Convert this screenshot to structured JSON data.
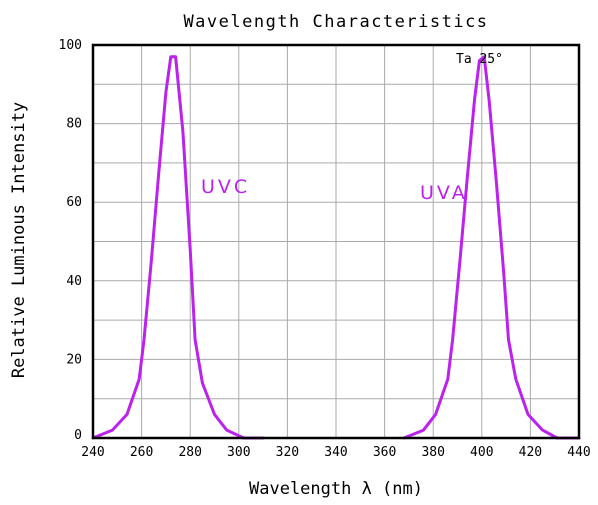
{
  "chart_data": {
    "type": "line",
    "title": "Wavelength Characteristics",
    "xlabel": "Wavelength λ (nm)",
    "ylabel": "Relative Luminous Intensity",
    "xlim": [
      240,
      440
    ],
    "ylim": [
      0,
      100
    ],
    "x_ticks": [
      "240",
      "260",
      "280",
      "300",
      "320",
      "340",
      "360",
      "380",
      "400",
      "420",
      "440"
    ],
    "y_ticks": [
      "0",
      "20",
      "40",
      "60",
      "80",
      "100"
    ],
    "grid": true,
    "annotation": "Ta 25°",
    "line_color": "#bb22ee",
    "series": [
      {
        "name": "UVC",
        "x": [
          240,
          248,
          254,
          259,
          261,
          264,
          267,
          270,
          272,
          274,
          277,
          280,
          282,
          285,
          290,
          295,
          302,
          310
        ],
        "y": [
          0,
          2,
          6,
          15,
          25,
          45,
          67,
          88,
          97,
          97,
          78,
          48,
          25,
          14,
          6,
          2,
          0,
          0
        ]
      },
      {
        "name": "UVA",
        "x": [
          368,
          376,
          381,
          386,
          388,
          391,
          394,
          397,
          399,
          401,
          403,
          406,
          409,
          411,
          414,
          419,
          425,
          431,
          440
        ],
        "y": [
          0,
          2,
          6,
          15,
          25,
          45,
          66,
          86,
          96,
          97,
          86,
          65,
          42,
          25,
          15,
          6,
          2,
          0,
          0
        ]
      }
    ]
  }
}
